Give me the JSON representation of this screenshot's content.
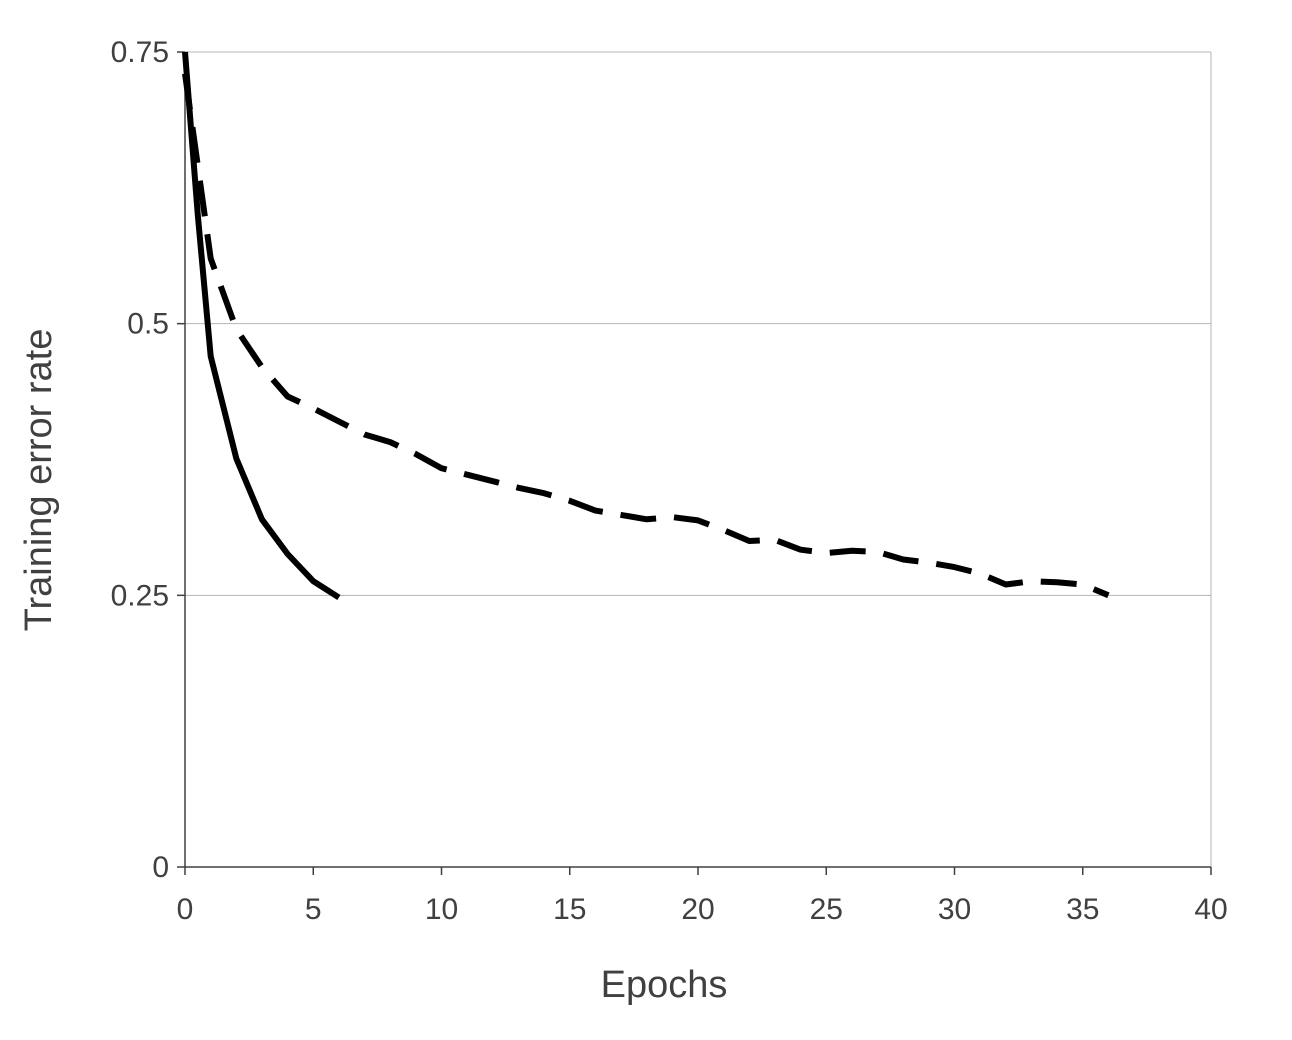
{
  "chart_data": {
    "type": "line",
    "xlabel": "Epochs",
    "ylabel": "Training error rate",
    "xlim": [
      0,
      40
    ],
    "ylim": [
      0,
      0.75
    ],
    "xticks": [
      0,
      5,
      10,
      15,
      20,
      25,
      30,
      35,
      40
    ],
    "yticks": [
      0,
      0.25,
      0.5,
      0.75
    ],
    "x_tick_labels": [
      "0",
      "5",
      "10",
      "15",
      "20",
      "25",
      "30",
      "35",
      "40"
    ],
    "y_tick_labels": [
      "0",
      "0.25",
      "0.5",
      "0.75"
    ],
    "grid": {
      "horizontal": true,
      "vertical": false
    },
    "series": [
      {
        "style": "solid",
        "color": "#000000",
        "x": [
          0,
          0.5,
          1,
          2,
          3,
          4,
          5,
          6
        ],
        "y": [
          0.75,
          0.6,
          0.47,
          0.376,
          0.32,
          0.288,
          0.263,
          0.248
        ]
      },
      {
        "style": "dashed",
        "color": "#000000",
        "x": [
          0,
          1,
          2,
          3,
          4,
          5,
          6,
          7,
          8,
          9,
          10,
          11,
          12,
          13,
          14,
          15,
          16,
          17,
          18,
          19,
          20,
          21,
          22,
          23,
          24,
          25,
          26,
          27,
          28,
          29,
          30,
          31,
          32,
          33,
          34,
          35,
          36
        ],
        "y": [
          0.73,
          0.56,
          0.495,
          0.46,
          0.433,
          0.422,
          0.41,
          0.398,
          0.391,
          0.38,
          0.367,
          0.361,
          0.355,
          0.349,
          0.344,
          0.337,
          0.328,
          0.324,
          0.32,
          0.322,
          0.319,
          0.31,
          0.3,
          0.301,
          0.292,
          0.289,
          0.291,
          0.29,
          0.283,
          0.28,
          0.276,
          0.27,
          0.26,
          0.263,
          0.262,
          0.26,
          0.25
        ]
      }
    ]
  }
}
